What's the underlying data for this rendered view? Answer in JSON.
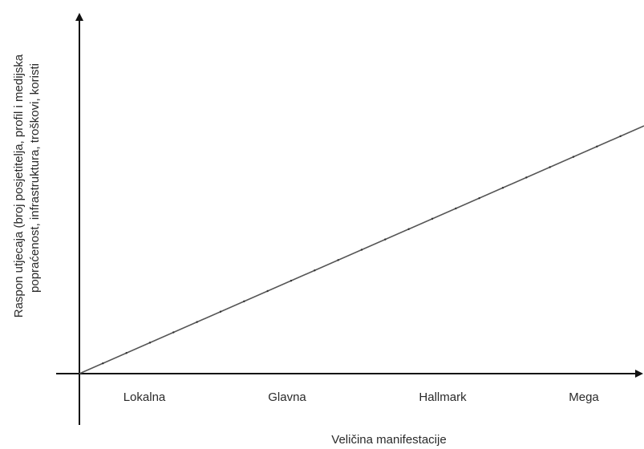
{
  "chart_data": {
    "type": "line",
    "title": "",
    "xlabel": "Veličina manifestacije",
    "ylabel_lines": [
      "Raspon utjecaja (broj posjetitelja, profil i medijska",
      "popraćenost, infrastruktura, troškovi, koristi"
    ],
    "categories": [
      "Lokalna",
      "Glavna",
      "Hallmark",
      "Mega"
    ],
    "series": [
      {
        "x": [
          0,
          1
        ],
        "y": [
          0,
          1
        ]
      }
    ],
    "xlim": [
      0,
      1
    ],
    "ylim": [
      0,
      1
    ],
    "grid": false,
    "legend": "none",
    "line_color": "#555555",
    "axis_color": "#111111"
  }
}
